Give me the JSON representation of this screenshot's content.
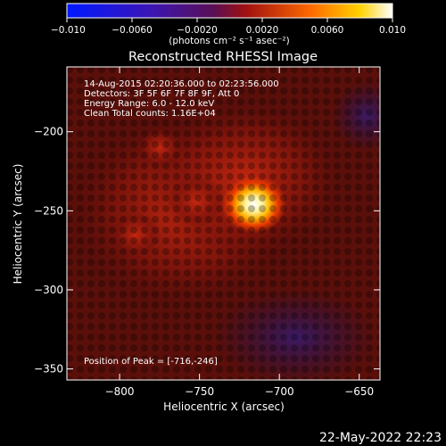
{
  "chart_data": {
    "type": "heatmap",
    "title": "Reconstructed RHESSI Image",
    "xlabel": "Heliocentric X (arcsec)",
    "ylabel": "Heliocentric Y (arcsec)",
    "xlim": [
      -833,
      -637
    ],
    "ylim": [
      -357,
      -159
    ],
    "x_ticks": [
      {
        "value": -800,
        "label": "−800"
      },
      {
        "value": -750,
        "label": "−750"
      },
      {
        "value": -700,
        "label": "−700"
      },
      {
        "value": -650,
        "label": "−650"
      }
    ],
    "y_ticks": [
      {
        "value": -200,
        "label": "−200"
      },
      {
        "value": -250,
        "label": "−250"
      },
      {
        "value": -300,
        "label": "−300"
      },
      {
        "value": -350,
        "label": "−350"
      }
    ],
    "colorbar": {
      "range": [
        -0.01,
        0.01
      ],
      "ticks": [
        {
          "value": -0.01,
          "label": "−0.010"
        },
        {
          "value": -0.006,
          "label": "−0.0060"
        },
        {
          "value": -0.002,
          "label": "−0.0020"
        },
        {
          "value": 0.002,
          "label": "0.0020"
        },
        {
          "value": 0.006,
          "label": "0.0060"
        },
        {
          "value": 0.01,
          "label": "0.010"
        }
      ],
      "units_label": "(photons cm⁻² s⁻¹ asec⁻²)"
    },
    "annotations": [
      "14-Aug-2015 02:20:36.000 to 02:23:56.000",
      "Detectors: 3F 5F 6F 7F 8F 9F, Att 0",
      "Energy Range: 6.0 - 12.0 keV",
      "Clean     Total counts: 1.16E+04"
    ],
    "peak_label": "Position of Peak = [-716,-246]",
    "peak": {
      "x": -716,
      "y": -246,
      "value": 0.0095
    },
    "secondary_sources": [
      {
        "x": -752,
        "y": -244,
        "value": 0.0035
      },
      {
        "x": -790,
        "y": -265,
        "value": 0.0025
      },
      {
        "x": -775,
        "y": -210,
        "value": 0.002
      }
    ],
    "grid": false,
    "colormap": "rainbow-to-white"
  },
  "footer": {
    "timestamp": "22-May-2022 22:23"
  }
}
